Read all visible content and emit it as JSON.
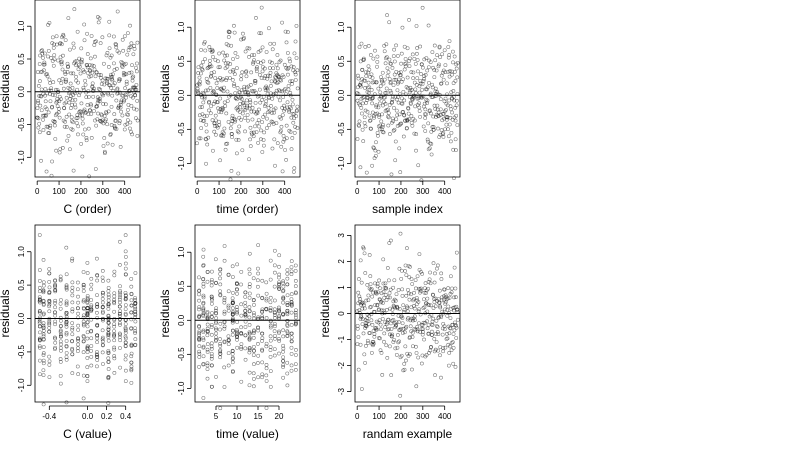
{
  "figure": {
    "background": "#ffffff"
  },
  "style": {
    "point_color": "#000000",
    "point_opacity": 0.55,
    "reference_line_color": "#000000",
    "frame_color": "#000000"
  },
  "chart_data": [
    {
      "type": "scatter",
      "title": "",
      "xlabel": "C (order)",
      "ylabel": "residuals",
      "xlim": [
        -10,
        470
      ],
      "ylim": [
        -1.3,
        1.4
      ],
      "x_ticks": [
        0,
        100,
        200,
        300,
        400
      ],
      "x_tick_labels": [
        "0",
        "100",
        "200",
        "300",
        "400"
      ],
      "y_ticks": [
        -1.0,
        -0.5,
        0.0,
        0.5,
        1.0
      ],
      "y_tick_labels": [
        "-1.0",
        "-0.5",
        "0.0",
        "0.5",
        "1.0"
      ],
      "hline": 0,
      "marker": "open-circle",
      "n_points": 480,
      "x_mode": "index",
      "x_range": [
        0,
        460
      ],
      "y_sd": 0.45,
      "seed": 11
    },
    {
      "type": "scatter",
      "title": "",
      "xlabel": "time (order)",
      "ylabel": "residuals",
      "xlim": [
        -10,
        470
      ],
      "ylim": [
        -1.2,
        1.4
      ],
      "x_ticks": [
        0,
        100,
        200,
        300,
        400
      ],
      "x_tick_labels": [
        "0",
        "100",
        "200",
        "300",
        "400"
      ],
      "y_ticks": [
        -1.0,
        -0.5,
        0.0,
        0.5,
        1.0
      ],
      "y_tick_labels": [
        "-1.0",
        "-0.5",
        "0.0",
        "0.5",
        "1.0"
      ],
      "hline": 0,
      "marker": "open-circle",
      "n_points": 480,
      "x_mode": "index",
      "x_range": [
        0,
        460
      ],
      "y_sd": 0.45,
      "seed": 23
    },
    {
      "type": "scatter",
      "title": "",
      "xlabel": "sample index",
      "ylabel": "residuals",
      "xlim": [
        -10,
        470
      ],
      "ylim": [
        -1.2,
        1.4
      ],
      "x_ticks": [
        0,
        100,
        200,
        300,
        400
      ],
      "x_tick_labels": [
        "0",
        "100",
        "200",
        "300",
        "400"
      ],
      "y_ticks": [
        -1.0,
        -0.5,
        0.0,
        0.5,
        1.0
      ],
      "y_tick_labels": [
        "-1.0",
        "-0.5",
        "0.0",
        "0.5",
        "1.0"
      ],
      "hline": 0,
      "marker": "open-circle",
      "n_points": 480,
      "x_mode": "index",
      "x_range": [
        0,
        460
      ],
      "y_sd": 0.42,
      "seed": 37
    },
    {
      "type": "scatter",
      "title": "",
      "xlabel": "C (value)",
      "ylabel": "residuals",
      "xlim": [
        -0.55,
        0.55
      ],
      "ylim": [
        -1.25,
        1.4
      ],
      "x_ticks": [
        -0.4,
        0.0,
        0.2,
        0.4
      ],
      "x_tick_labels": [
        "-0.4",
        "0.0",
        "0.2",
        "0.4"
      ],
      "y_ticks": [
        -1.0,
        -0.5,
        0.0,
        0.5,
        1.0
      ],
      "y_tick_labels": [
        "-1.0",
        "-0.5",
        "0.0",
        "0.5",
        "1.0"
      ],
      "hline": 0,
      "marker": "open-circle",
      "n_points": 480,
      "x_mode": "discrete",
      "x_levels": [
        -0.5,
        -0.46,
        -0.4,
        -0.34,
        -0.28,
        -0.22,
        -0.16,
        -0.1,
        -0.04,
        0.0,
        0.04,
        0.1,
        0.16,
        0.22,
        0.28,
        0.34,
        0.4,
        0.46,
        0.5
      ],
      "y_sd": 0.45,
      "seed": 41
    },
    {
      "type": "scatter",
      "title": "",
      "xlabel": "time (value)",
      "ylabel": "residuals",
      "xlim": [
        0,
        25
      ],
      "ylim": [
        -1.2,
        1.4
      ],
      "x_ticks": [
        5,
        10,
        15,
        20
      ],
      "x_tick_labels": [
        "5",
        "10",
        "15",
        "20"
      ],
      "y_ticks": [
        -1.0,
        -0.5,
        0.0,
        0.5,
        1.0
      ],
      "y_tick_labels": [
        "-1.0",
        "-0.5",
        "0.0",
        "0.5",
        "1.0"
      ],
      "hline": 0,
      "marker": "open-circle",
      "n_points": 480,
      "x_mode": "discrete",
      "x_levels": [
        1,
        2,
        3,
        4,
        5,
        6,
        7,
        8,
        9,
        10,
        11,
        12,
        13,
        14,
        15,
        16,
        17,
        18,
        19,
        20,
        21,
        22,
        23,
        24
      ],
      "y_sd": 0.45,
      "seed": 53
    },
    {
      "type": "scatter",
      "title": "",
      "xlabel": "randam example",
      "ylabel": "residuals",
      "xlim": [
        -10,
        470
      ],
      "ylim": [
        -3.4,
        3.4
      ],
      "x_ticks": [
        0,
        100,
        200,
        300,
        400
      ],
      "x_tick_labels": [
        "0",
        "100",
        "200",
        "300",
        "400"
      ],
      "y_ticks": [
        -3,
        -2,
        -1,
        0,
        1,
        2,
        3
      ],
      "y_tick_labels": [
        "-3",
        "-2",
        "-1",
        "0",
        "1",
        "2",
        "3"
      ],
      "hline": 0,
      "marker": "open-circle",
      "n_points": 460,
      "x_mode": "index",
      "x_range": [
        0,
        460
      ],
      "y_sd": 1.0,
      "seed": 67
    }
  ]
}
